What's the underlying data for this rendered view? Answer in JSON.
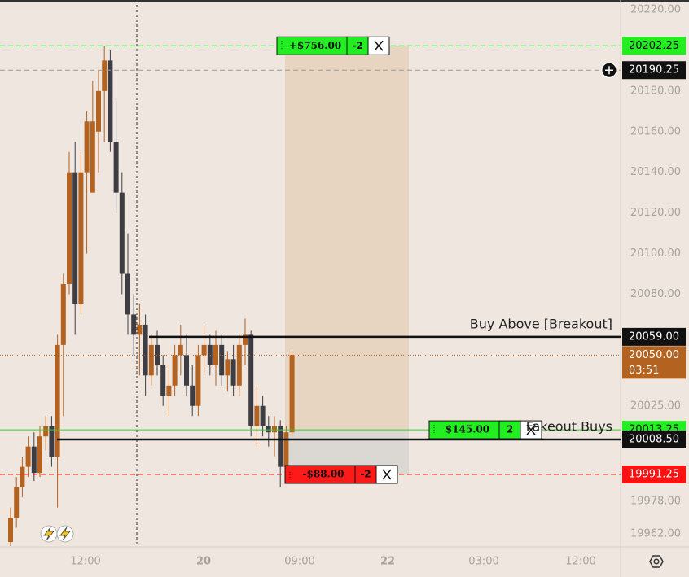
{
  "chart_data": {
    "type": "candlestick",
    "ylim": [
      19955.6,
      20224.8
    ],
    "yticks": [
      {
        "value": 20220,
        "label": "20220.00"
      },
      {
        "value": 20180,
        "label": "20180.00"
      },
      {
        "value": 20160,
        "label": "20160.00"
      },
      {
        "value": 20140,
        "label": "20140.00"
      },
      {
        "value": 20120,
        "label": "20120.00"
      },
      {
        "value": 20100,
        "label": "20100.00"
      },
      {
        "value": 20080,
        "label": "20080.00"
      },
      {
        "value": 20025,
        "label": "20025.00"
      },
      {
        "value": 19978,
        "label": "19978.00"
      },
      {
        "value": 19962,
        "label": "19962.00"
      }
    ],
    "x_labels": [
      "12:00",
      "20",
      "09:00",
      "22",
      "03:00",
      "12:00"
    ],
    "up_color": "#b3621f",
    "down_color": "#3e3d44",
    "open": [
      19958,
      19970,
      19985,
      19995,
      20005,
      19992,
      20010,
      20015,
      20000,
      20055,
      20085,
      20140,
      20075,
      20140,
      20130,
      20160,
      20180,
      20195,
      20155,
      20130,
      20090,
      20070,
      20060,
      20065,
      20040,
      20055,
      20045,
      20030,
      20035,
      20050,
      20050,
      20035,
      20025,
      20050,
      20055,
      20045,
      20055,
      20040,
      20048,
      20035,
      20055,
      20060,
      20015,
      20025,
      20015,
      20012,
      20015,
      19995,
      20012
    ],
    "high": [
      19975,
      19990,
      20000,
      20010,
      20012,
      20015,
      20020,
      20020,
      20060,
      20090,
      20150,
      20155,
      20150,
      20170,
      20185,
      20190,
      20202,
      20200,
      20175,
      20140,
      20110,
      20080,
      20075,
      20070,
      20060,
      20062,
      20050,
      20045,
      20055,
      20065,
      20060,
      20045,
      20055,
      20065,
      20060,
      20062,
      20060,
      20052,
      20055,
      20060,
      20068,
      20062,
      20035,
      20030,
      20020,
      20020,
      20018,
      20015,
      20052
    ],
    "low": [
      19956,
      19965,
      19980,
      19990,
      19988,
      19990,
      20003,
      19995,
      19975,
      20020,
      20080,
      20060,
      20070,
      20100,
      20130,
      20140,
      20155,
      20150,
      20120,
      20080,
      20060,
      20050,
      20040,
      20030,
      20035,
      20040,
      20025,
      20020,
      20030,
      20040,
      20030,
      20020,
      20020,
      20040,
      20040,
      20035,
      20035,
      20032,
      20030,
      20030,
      20045,
      20010,
      20005,
      20010,
      20005,
      20000,
      19985,
      19990,
      20010
    ],
    "close": [
      19970,
      19985,
      19995,
      20005,
      19992,
      20010,
      20015,
      20000,
      20055,
      20085,
      20140,
      20075,
      20140,
      20165,
      20165,
      20180,
      20195,
      20155,
      20130,
      20090,
      20070,
      20060,
      20065,
      20040,
      20055,
      20045,
      20030,
      20035,
      20050,
      20055,
      20035,
      20025,
      20050,
      20055,
      20045,
      20055,
      20040,
      20048,
      20035,
      20055,
      20060,
      20015,
      20025,
      20015,
      20012,
      20015,
      19995,
      20012,
      20050
    ],
    "price_lines": [
      {
        "value": 20202.25,
        "label": "20202.25",
        "color": "#22dd22",
        "style": "dashed",
        "order": {
          "pnl": {
            "value": 756,
            "label": "+$756.00"
          },
          "qty": -2
        }
      },
      {
        "value": 20190.25,
        "label": "20190.25",
        "color": "#999999",
        "style": "dashed"
      },
      {
        "value": 20059,
        "label": "20059.00",
        "color": "#111111",
        "style": "solid",
        "note": "Buy Above [Breakout]"
      },
      {
        "value": 20050,
        "label": "20050.00",
        "color": "#b3621f",
        "style": "dotted",
        "countdown": "03:51"
      },
      {
        "value": 20013.25,
        "label": "20013.25",
        "color": "#22dd22",
        "style": "solid",
        "order": {
          "pnl": {
            "value": 145,
            "label": "$145.00"
          },
          "qty": 2
        }
      },
      {
        "value": 20008.5,
        "label": "20008.50",
        "color": "#111111",
        "style": "solid",
        "note": "Fakeout Buys"
      },
      {
        "value": 19991.25,
        "label": "19991.25",
        "color": "#ff1111",
        "style": "dashed",
        "order": {
          "pnl": {
            "value": -88,
            "label": "-$88.00"
          },
          "qty": -2
        }
      }
    ]
  }
}
